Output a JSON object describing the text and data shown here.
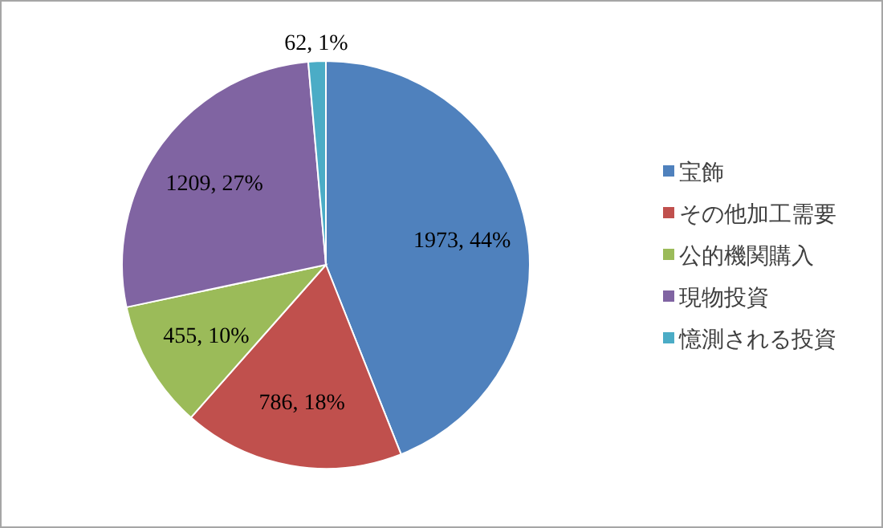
{
  "chart_data": {
    "type": "pie",
    "categories": [
      "宝飾",
      "その他加工需要",
      "公的機関購入",
      "現物投資",
      "憶測される投資"
    ],
    "values": [
      1973,
      786,
      455,
      1209,
      62
    ],
    "colors": [
      "#4f81bd",
      "#c0504d",
      "#9bbb59",
      "#8064a2",
      "#4bacc6"
    ],
    "value_labels": [
      "1973, 44%",
      "786, 18%",
      "455, 10%",
      "1209, 27%",
      "62, 1%"
    ],
    "legend": "right"
  }
}
